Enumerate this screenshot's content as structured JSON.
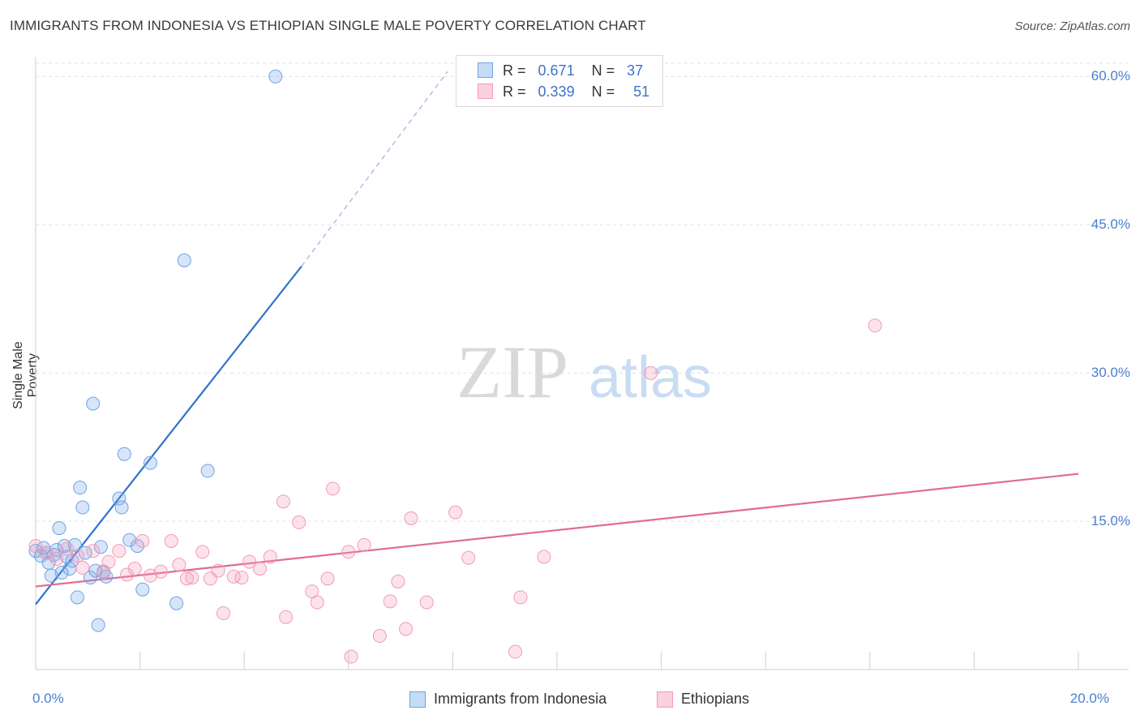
{
  "title": "IMMIGRANTS FROM INDONESIA VS ETHIOPIAN SINGLE MALE POVERTY CORRELATION CHART",
  "source": "Source: ZipAtlas.com",
  "watermark": {
    "zip": "ZIP",
    "atlas": "atlas"
  },
  "colors": {
    "blue": "#6fa3e6",
    "blue_line": "#2f72cc",
    "pink": "#f49ab8",
    "pink_line": "#e06b96",
    "tick_text": "#4a7fd1"
  },
  "legend_top": {
    "rows": [
      {
        "r_label": "R =",
        "r_value": "0.671",
        "n_label": "N =",
        "n_value": "37",
        "color": "#6fa3e6"
      },
      {
        "r_label": "R =",
        "r_value": "0.339",
        "n_label": "N =",
        "n_value": "51",
        "color": "#f49ab8"
      }
    ]
  },
  "chart_data": {
    "type": "scatter",
    "title": "IMMIGRANTS FROM INDONESIA VS ETHIOPIAN SINGLE MALE POVERTY CORRELATION CHART",
    "xlabel": "",
    "ylabel": "Single Male Poverty",
    "xlim": [
      0,
      20
    ],
    "ylim": [
      0,
      62
    ],
    "y_ticks": [
      {
        "value": 15,
        "label": "15.0%"
      },
      {
        "value": 30,
        "label": "30.0%"
      },
      {
        "value": 45,
        "label": "45.0%"
      },
      {
        "value": 60,
        "label": "60.0%"
      }
    ],
    "x_tick_labels": [
      {
        "value": 0,
        "label": "0.0%"
      },
      {
        "value": 20,
        "label": "20.0%"
      }
    ],
    "x_minor_ticks": [
      0,
      2,
      4,
      6,
      8,
      10,
      12,
      14,
      16,
      18,
      20
    ],
    "grid": true,
    "legend_position": "bottom-center",
    "series": [
      {
        "name": "Immigrants from Indonesia",
        "color": "#6fa3e6",
        "R": 0.671,
        "N": 37,
        "trend": {
          "x0": 0,
          "y0": 6.6,
          "x1": 5.1,
          "y1": 40.8,
          "dash_to_x": 7.9,
          "dash_to_y": 60.5
        },
        "points": [
          [
            0.0,
            12.0
          ],
          [
            0.1,
            11.5
          ],
          [
            0.15,
            12.3
          ],
          [
            0.2,
            11.8
          ],
          [
            0.25,
            10.8
          ],
          [
            0.3,
            9.5
          ],
          [
            0.35,
            11.6
          ],
          [
            0.4,
            12.1
          ],
          [
            0.45,
            14.3
          ],
          [
            0.5,
            9.8
          ],
          [
            0.55,
            12.5
          ],
          [
            0.6,
            11.4
          ],
          [
            0.65,
            10.2
          ],
          [
            0.7,
            11.0
          ],
          [
            0.75,
            12.6
          ],
          [
            0.8,
            7.3
          ],
          [
            0.85,
            18.4
          ],
          [
            0.9,
            16.4
          ],
          [
            0.95,
            11.8
          ],
          [
            1.05,
            9.3
          ],
          [
            1.1,
            26.9
          ],
          [
            1.15,
            10.0
          ],
          [
            1.2,
            4.5
          ],
          [
            1.25,
            12.4
          ],
          [
            1.3,
            9.9
          ],
          [
            1.35,
            9.4
          ],
          [
            1.6,
            17.3
          ],
          [
            1.65,
            16.4
          ],
          [
            1.7,
            21.8
          ],
          [
            1.8,
            13.1
          ],
          [
            1.95,
            12.5
          ],
          [
            2.05,
            8.1
          ],
          [
            2.2,
            20.9
          ],
          [
            2.7,
            6.7
          ],
          [
            2.85,
            41.4
          ],
          [
            3.3,
            20.1
          ],
          [
            4.6,
            60.0
          ]
        ]
      },
      {
        "name": "Ethiopians",
        "color": "#f49ab8",
        "R": 0.339,
        "N": 51,
        "trend": {
          "x0": 0,
          "y0": 8.4,
          "x1": 20,
          "y1": 19.8
        },
        "points": [
          [
            0.0,
            12.5
          ],
          [
            0.2,
            11.8
          ],
          [
            0.4,
            11.2
          ],
          [
            0.6,
            12.2
          ],
          [
            0.8,
            11.5
          ],
          [
            0.9,
            10.3
          ],
          [
            1.1,
            12.0
          ],
          [
            1.3,
            9.8
          ],
          [
            1.4,
            10.9
          ],
          [
            1.6,
            12.0
          ],
          [
            1.75,
            9.6
          ],
          [
            1.9,
            10.2
          ],
          [
            2.05,
            13.0
          ],
          [
            2.2,
            9.5
          ],
          [
            2.4,
            9.9
          ],
          [
            2.6,
            13.0
          ],
          [
            2.75,
            10.6
          ],
          [
            2.9,
            9.2
          ],
          [
            3.0,
            9.3
          ],
          [
            3.2,
            11.9
          ],
          [
            3.35,
            9.2
          ],
          [
            3.5,
            10.0
          ],
          [
            3.6,
            5.7
          ],
          [
            3.8,
            9.4
          ],
          [
            3.95,
            9.3
          ],
          [
            4.1,
            10.9
          ],
          [
            4.3,
            10.2
          ],
          [
            4.5,
            11.4
          ],
          [
            4.75,
            17.0
          ],
          [
            4.8,
            5.3
          ],
          [
            5.05,
            14.9
          ],
          [
            5.3,
            7.9
          ],
          [
            5.4,
            6.8
          ],
          [
            5.6,
            9.2
          ],
          [
            5.7,
            18.3
          ],
          [
            6.0,
            11.9
          ],
          [
            6.05,
            1.3
          ],
          [
            6.3,
            12.6
          ],
          [
            6.6,
            3.4
          ],
          [
            6.8,
            6.9
          ],
          [
            6.95,
            8.9
          ],
          [
            7.1,
            4.1
          ],
          [
            7.2,
            15.3
          ],
          [
            7.5,
            6.8
          ],
          [
            8.05,
            15.9
          ],
          [
            8.3,
            11.3
          ],
          [
            9.2,
            1.8
          ],
          [
            9.3,
            7.3
          ],
          [
            9.75,
            11.4
          ],
          [
            11.8,
            30.0
          ],
          [
            16.1,
            34.8
          ]
        ]
      }
    ]
  },
  "legend_bottom": {
    "items": [
      {
        "label": "Immigrants from Indonesia",
        "color": "#6fa3e6"
      },
      {
        "label": "Ethiopians",
        "color": "#f49ab8"
      }
    ]
  }
}
